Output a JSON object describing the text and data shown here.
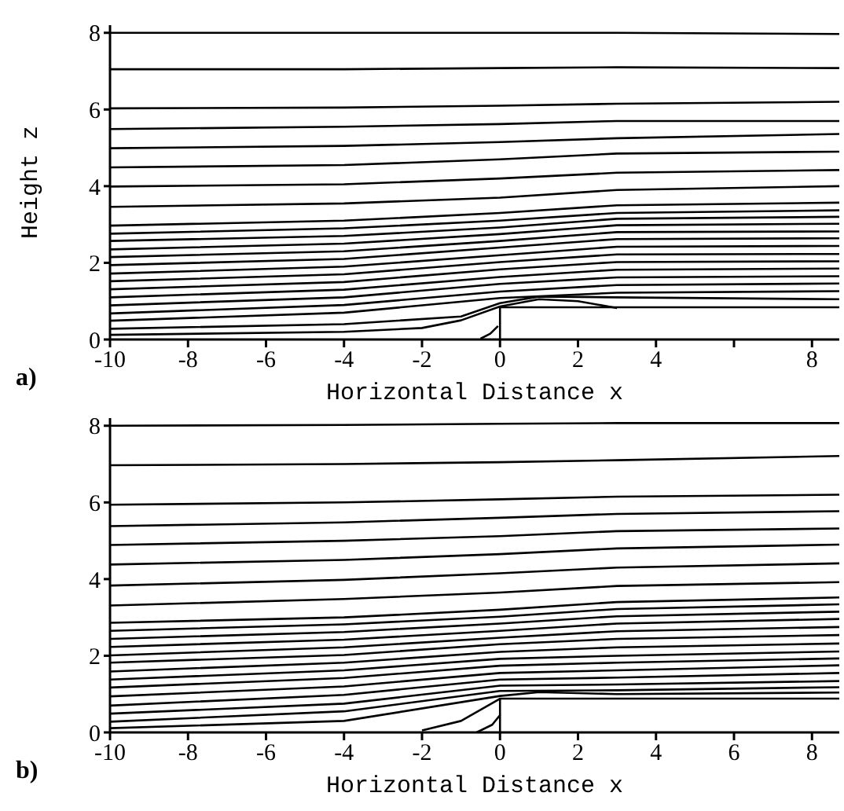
{
  "chart_data": [
    {
      "type": "line",
      "ylabel": "Height z",
      "xlabel": "Horizontal Distance x",
      "annotations": [
        "a)"
      ],
      "xlim": [
        -10,
        8.7
      ],
      "ylim": [
        0,
        8.2
      ],
      "xticks": [
        -10,
        -8,
        -6,
        -4,
        -2,
        0,
        2,
        4,
        {
          "value": 6,
          "label": null
        },
        8
      ],
      "yticks": [
        0,
        2,
        4,
        6,
        8
      ],
      "marker": "none",
      "line_style": "solid",
      "series": [
        {
          "color": "#000000",
          "x": [
            -10,
            -4,
            0,
            3,
            8.7
          ],
          "values": [
            8.0,
            8.0,
            8.0,
            8.0,
            7.97
          ]
        },
        {
          "color": "#000000",
          "x": [
            -10,
            -4,
            0,
            3,
            8.7
          ],
          "values": [
            7.05,
            7.05,
            7.08,
            7.1,
            7.08
          ]
        },
        {
          "color": "#000000",
          "x": [
            -10,
            -4,
            0,
            3,
            8.7
          ],
          "values": [
            6.03,
            6.05,
            6.1,
            6.15,
            6.2
          ]
        },
        {
          "color": "#000000",
          "x": [
            -10,
            -4,
            0,
            3,
            8.7
          ],
          "values": [
            5.49,
            5.55,
            5.62,
            5.7,
            5.7
          ]
        },
        {
          "color": "#000000",
          "x": [
            -10,
            -4,
            0,
            3,
            8.7
          ],
          "values": [
            4.99,
            5.05,
            5.15,
            5.25,
            5.36
          ]
        },
        {
          "color": "#000000",
          "x": [
            -10,
            -4,
            0,
            3,
            8.7
          ],
          "values": [
            4.49,
            4.55,
            4.7,
            4.85,
            4.9
          ]
        },
        {
          "color": "#000000",
          "x": [
            -10,
            -4,
            0,
            3,
            8.7
          ],
          "values": [
            3.99,
            4.05,
            4.2,
            4.35,
            4.42
          ]
        },
        {
          "color": "#000000",
          "x": [
            -10,
            -4,
            0,
            3,
            8.7
          ],
          "values": [
            3.46,
            3.55,
            3.7,
            3.9,
            4.0
          ]
        },
        {
          "color": "#000000",
          "x": [
            -10,
            -4,
            0,
            3,
            8.7
          ],
          "values": [
            2.97,
            3.1,
            3.3,
            3.5,
            3.57
          ]
        },
        {
          "color": "#000000",
          "x": [
            -10,
            -4,
            0,
            3,
            8.7
          ],
          "values": [
            2.76,
            2.9,
            3.1,
            3.3,
            3.37
          ]
        },
        {
          "color": "#000000",
          "x": [
            -10,
            -4,
            0,
            3,
            8.7
          ],
          "values": [
            2.57,
            2.7,
            2.92,
            3.15,
            3.2
          ]
        },
        {
          "color": "#000000",
          "x": [
            -10,
            -4,
            0,
            3,
            8.7
          ],
          "values": [
            2.35,
            2.5,
            2.75,
            2.98,
            3.02
          ]
        },
        {
          "color": "#000000",
          "x": [
            -10,
            -4,
            0,
            3,
            8.7
          ],
          "values": [
            2.15,
            2.3,
            2.57,
            2.8,
            2.82
          ]
        },
        {
          "color": "#000000",
          "x": [
            -10,
            -4,
            0,
            3,
            8.7
          ],
          "values": [
            1.94,
            2.1,
            2.4,
            2.62,
            2.64
          ]
        },
        {
          "color": "#000000",
          "x": [
            -10,
            -4,
            0,
            3,
            8.7
          ],
          "values": [
            1.72,
            1.9,
            2.2,
            2.42,
            2.44
          ]
        },
        {
          "color": "#000000",
          "x": [
            -10,
            -4,
            0,
            3,
            8.7
          ],
          "values": [
            1.52,
            1.7,
            2.02,
            2.22,
            2.23
          ]
        },
        {
          "color": "#000000",
          "x": [
            -10,
            -4,
            0,
            3,
            8.7
          ],
          "values": [
            1.31,
            1.5,
            1.83,
            2.02,
            2.04
          ]
        },
        {
          "color": "#000000",
          "x": [
            -10,
            -4,
            0,
            3,
            8.7
          ],
          "values": [
            1.1,
            1.3,
            1.63,
            1.82,
            1.85
          ]
        },
        {
          "color": "#000000",
          "x": [
            -10,
            -4,
            0,
            3,
            8.7
          ],
          "values": [
            0.89,
            1.1,
            1.45,
            1.62,
            1.65
          ]
        },
        {
          "color": "#000000",
          "x": [
            -10,
            -4,
            0,
            3,
            8.7
          ],
          "values": [
            0.68,
            0.9,
            1.25,
            1.42,
            1.46
          ]
        },
        {
          "color": "#000000",
          "x": [
            -10,
            -4,
            0,
            3,
            8.7
          ],
          "values": [
            0.49,
            0.7,
            1.08,
            1.22,
            1.26
          ]
        },
        {
          "color": "#000000",
          "x": [
            -10,
            -4,
            -1,
            0,
            1,
            3,
            8.7
          ],
          "values": [
            0.28,
            0.4,
            0.6,
            0.95,
            1.12,
            1.1,
            1.05
          ]
        },
        {
          "color": "#000000",
          "x": [
            -10,
            -4,
            -2,
            -1,
            0,
            1,
            2,
            3
          ],
          "values": [
            0.12,
            0.2,
            0.3,
            0.5,
            0.86,
            1.05,
            1.0,
            0.82
          ]
        },
        {
          "color": "#000000",
          "x": [
            0,
            0,
            8.7
          ],
          "values": [
            0,
            0.84,
            0.84
          ]
        },
        {
          "color": "#000000",
          "x": [
            -0.5,
            -0.25,
            -0.05
          ],
          "values": [
            0.02,
            0.15,
            0.35
          ]
        }
      ]
    },
    {
      "type": "line",
      "xlabel": "Horizontal Distance x",
      "annotations": [
        "b)"
      ],
      "xlim": [
        -10,
        8.7
      ],
      "ylim": [
        0,
        8.2
      ],
      "xticks": [
        -10,
        -8,
        -6,
        -4,
        -2,
        0,
        2,
        4,
        6,
        8
      ],
      "yticks": [
        0,
        2,
        4,
        6,
        8
      ],
      "marker": "none",
      "line_style": "solid",
      "series": [
        {
          "color": "#000000",
          "x": [
            -10,
            -4,
            0,
            3,
            8.7
          ],
          "values": [
            8.0,
            8.02,
            8.05,
            8.07,
            8.07
          ]
        },
        {
          "color": "#000000",
          "x": [
            -10,
            -4,
            0,
            3,
            8.7
          ],
          "values": [
            6.97,
            7.0,
            7.05,
            7.1,
            7.21
          ]
        },
        {
          "color": "#000000",
          "x": [
            -10,
            -4,
            0,
            3,
            8.7
          ],
          "values": [
            5.94,
            6.0,
            6.08,
            6.15,
            6.2
          ]
        },
        {
          "color": "#000000",
          "x": [
            -10,
            -4,
            0,
            3,
            8.7
          ],
          "values": [
            5.38,
            5.48,
            5.6,
            5.7,
            5.77
          ]
        },
        {
          "color": "#000000",
          "x": [
            -10,
            -4,
            0,
            3,
            8.7
          ],
          "values": [
            4.89,
            5.0,
            5.12,
            5.25,
            5.32
          ]
        },
        {
          "color": "#000000",
          "x": [
            -10,
            -4,
            0,
            3,
            8.7
          ],
          "values": [
            4.38,
            4.5,
            4.65,
            4.8,
            4.9
          ]
        },
        {
          "color": "#000000",
          "x": [
            -10,
            -4,
            0,
            3,
            8.7
          ],
          "values": [
            3.83,
            3.98,
            4.15,
            4.3,
            4.41
          ]
        },
        {
          "color": "#000000",
          "x": [
            -10,
            -4,
            0,
            3,
            8.7
          ],
          "values": [
            3.31,
            3.48,
            3.65,
            3.82,
            3.92
          ]
        },
        {
          "color": "#000000",
          "x": [
            -10,
            -4,
            0,
            3,
            8.7
          ],
          "values": [
            2.86,
            3.0,
            3.2,
            3.4,
            3.52
          ]
        },
        {
          "color": "#000000",
          "x": [
            -10,
            -4,
            0,
            3,
            8.7
          ],
          "values": [
            2.65,
            2.82,
            3.02,
            3.22,
            3.34
          ]
        },
        {
          "color": "#000000",
          "x": [
            -10,
            -4,
            0,
            3,
            8.7
          ],
          "values": [
            2.44,
            2.62,
            2.84,
            3.03,
            3.15
          ]
        },
        {
          "color": "#000000",
          "x": [
            -10,
            -4,
            0,
            3,
            8.7
          ],
          "values": [
            2.23,
            2.42,
            2.65,
            2.84,
            2.96
          ]
        },
        {
          "color": "#000000",
          "x": [
            -10,
            -4,
            0,
            3,
            8.7
          ],
          "values": [
            2.01,
            2.22,
            2.47,
            2.64,
            2.75
          ]
        },
        {
          "color": "#000000",
          "x": [
            -10,
            -4,
            0,
            3,
            8.7
          ],
          "values": [
            1.82,
            2.02,
            2.3,
            2.44,
            2.54
          ]
        },
        {
          "color": "#000000",
          "x": [
            -10,
            -4,
            0,
            3,
            8.7
          ],
          "values": [
            1.59,
            1.82,
            2.1,
            2.22,
            2.32
          ]
        },
        {
          "color": "#000000",
          "x": [
            -10,
            -4,
            0,
            3,
            8.7
          ],
          "values": [
            1.38,
            1.62,
            1.92,
            2.0,
            2.11
          ]
        },
        {
          "color": "#000000",
          "x": [
            -10,
            -4,
            0,
            3,
            8.7
          ],
          "values": [
            1.17,
            1.42,
            1.74,
            1.82,
            1.93
          ]
        },
        {
          "color": "#000000",
          "x": [
            -10,
            -4,
            0,
            3,
            8.7
          ],
          "values": [
            0.94,
            1.2,
            1.55,
            1.62,
            1.75
          ]
        },
        {
          "color": "#000000",
          "x": [
            -10,
            -4,
            0,
            3,
            8.7
          ],
          "values": [
            0.7,
            0.98,
            1.38,
            1.43,
            1.55
          ]
        },
        {
          "color": "#000000",
          "x": [
            -10,
            -4,
            0,
            3,
            8.7
          ],
          "values": [
            0.49,
            0.75,
            1.22,
            1.25,
            1.34
          ]
        },
        {
          "color": "#000000",
          "x": [
            -10,
            -4,
            0,
            3,
            8.7
          ],
          "values": [
            0.28,
            0.55,
            1.08,
            1.1,
            1.18
          ]
        },
        {
          "color": "#000000",
          "x": [
            -10,
            -4,
            0,
            1,
            3,
            8.7
          ],
          "values": [
            0.11,
            0.3,
            0.95,
            1.05,
            1.0,
            1.04
          ]
        },
        {
          "color": "#000000",
          "x": [
            -2,
            -1,
            0
          ],
          "values": [
            0.05,
            0.3,
            0.88
          ]
        },
        {
          "color": "#000000",
          "x": [
            -0.6,
            -0.2,
            0
          ],
          "values": [
            0,
            0.2,
            0.45
          ]
        },
        {
          "color": "#000000",
          "x": [
            0,
            0,
            8.7
          ],
          "values": [
            0,
            0.88,
            0.88
          ]
        }
      ]
    }
  ]
}
